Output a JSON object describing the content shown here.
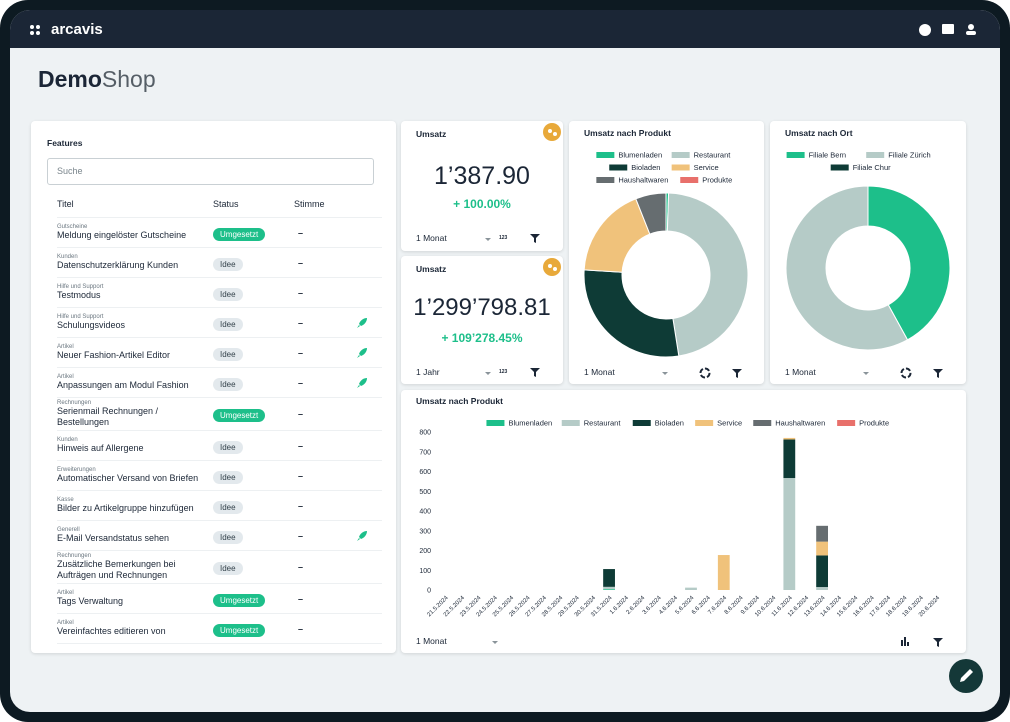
{
  "header": {
    "brand": "arcavis"
  },
  "shop": {
    "name_bold": "Demo",
    "name_light": "Shop"
  },
  "features": {
    "title": "Features",
    "search_placeholder": "Suche",
    "columns": [
      "Titel",
      "Status",
      "Stimme"
    ],
    "rows": [
      {
        "category": "Gutscheine",
        "title": "Meldung eingelöster Gutscheine",
        "status": "Umgesetzt",
        "status_color": "#1dbf8a",
        "status_text_color": "#ffffff",
        "vote": "–",
        "rocket": false
      },
      {
        "category": "Kunden",
        "title": "Datenschutzerklärung Kunden",
        "status": "Idee",
        "status_color": "#e3e9ed",
        "status_text_color": "#33414a",
        "vote": "–",
        "rocket": false
      },
      {
        "category": "Hilfe und Support",
        "title": "Testmodus",
        "status": "Idee",
        "status_color": "#e3e9ed",
        "status_text_color": "#33414a",
        "vote": "–",
        "rocket": false
      },
      {
        "category": "Hilfe und Support",
        "title": "Schulungsvideos",
        "status": "Idee",
        "status_color": "#e3e9ed",
        "status_text_color": "#33414a",
        "vote": "–",
        "rocket": true
      },
      {
        "category": "Artikel",
        "title": "Neuer Fashion-Artikel Editor",
        "status": "Idee",
        "status_color": "#e3e9ed",
        "status_text_color": "#33414a",
        "vote": "–",
        "rocket": true
      },
      {
        "category": "Artikel",
        "title": "Anpassungen am Modul Fashion",
        "status": "Idee",
        "status_color": "#e3e9ed",
        "status_text_color": "#33414a",
        "vote": "–",
        "rocket": true
      },
      {
        "category": "Rechnungen",
        "title": "Serienmail Rechnungen / Bestellungen",
        "status": "Umgesetzt",
        "status_color": "#1dbf8a",
        "status_text_color": "#ffffff",
        "vote": "–",
        "rocket": false
      },
      {
        "category": "Kunden",
        "title": "Hinweis auf Allergene",
        "status": "Idee",
        "status_color": "#e3e9ed",
        "status_text_color": "#33414a",
        "vote": "–",
        "rocket": false
      },
      {
        "category": "Erweiterungen",
        "title": "Automatischer Versand von Briefen",
        "status": "Idee",
        "status_color": "#e3e9ed",
        "status_text_color": "#33414a",
        "vote": "–",
        "rocket": false
      },
      {
        "category": "Kasse",
        "title": "Bilder zu Artikelgruppe hinzufügen",
        "status": "Idee",
        "status_color": "#e3e9ed",
        "status_text_color": "#33414a",
        "vote": "–",
        "rocket": false
      },
      {
        "category": "Generell",
        "title": "E-Mail Versandstatus sehen",
        "status": "Idee",
        "status_color": "#e3e9ed",
        "status_text_color": "#33414a",
        "vote": "–",
        "rocket": true
      },
      {
        "category": "Rechnungen",
        "title": "Zusätzliche Bemerkungen bei Aufträgen und Rechnungen",
        "status": "Idee",
        "status_color": "#e3e9ed",
        "status_text_color": "#33414a",
        "vote": "–",
        "rocket": false
      },
      {
        "category": "Artikel",
        "title": "Tags Verwaltung",
        "status": "Umgesetzt",
        "status_color": "#1dbf8a",
        "status_text_color": "#ffffff",
        "vote": "–",
        "rocket": false
      },
      {
        "category": "Artikel",
        "title": "Vereinfachtes editieren von",
        "status": "Umgesetzt",
        "status_color": "#1dbf8a",
        "status_text_color": "#ffffff",
        "vote": "–",
        "rocket": false
      }
    ]
  },
  "kpis": [
    {
      "title": "Umsatz",
      "value": "1’387.90",
      "change": "+ 100.00%",
      "period": "1 Monat",
      "format": "123"
    },
    {
      "title": "Umsatz",
      "value": "1’299’798.81",
      "change": "+ 109’278.45%",
      "period": "1 Jahr",
      "format": "123"
    }
  ],
  "chart_data": [
    {
      "type": "pie",
      "title": "Umsatz nach Produkt",
      "period": "1 Monat",
      "categories": [
        "Blumenladen",
        "Restaurant",
        "Bioladen",
        "Service",
        "Haushaltwaren",
        "Produkte"
      ],
      "values": [
        0.5,
        47,
        28.5,
        18,
        6,
        0
      ],
      "colors": [
        "#1dbf8a",
        "#b5cbc7",
        "#0e3b36",
        "#f0c27b",
        "#666d70",
        "#e8706b"
      ]
    },
    {
      "type": "pie",
      "title": "Umsatz nach Ort",
      "period": "1 Monat",
      "categories": [
        "Filiale Bern",
        "Filiale Zürich",
        "Filiale Chur"
      ],
      "values": [
        42,
        58,
        0
      ],
      "colors": [
        "#1dbf8a",
        "#b5cbc7",
        "#0e3b36"
      ]
    },
    {
      "type": "bar",
      "stacked": true,
      "title": "Umsatz nach Produkt",
      "period": "1 Monat",
      "grid": false,
      "categories": [
        "21.5.2024",
        "22.5.2024",
        "23.5.2024",
        "24.5.2024",
        "25.5.2024",
        "26.5.2024",
        "27.5.2024",
        "28.5.2024",
        "29.5.2024",
        "30.5.2024",
        "31.5.2024",
        "1.6.2024",
        "2.6.2024",
        "3.6.2024",
        "4.6.2024",
        "5.6.2024",
        "6.6.2024",
        "7.6.2024",
        "8.6.2024",
        "9.6.2024",
        "10.6.2024",
        "11.6.2024",
        "12.6.2024",
        "13.6.2024",
        "14.6.2024",
        "15.6.2024",
        "16.6.2024",
        "17.6.2024",
        "18.6.2024",
        "19.6.2024",
        "20.6.2024"
      ],
      "series": [
        {
          "name": "Blumenladen",
          "color": "#1dbf8a",
          "values": [
            0,
            0,
            0,
            0,
            0,
            0,
            0,
            0,
            0,
            0,
            4,
            0,
            0,
            0,
            0,
            0,
            0,
            0,
            0,
            0,
            0,
            0,
            0,
            0,
            0,
            0,
            0,
            0,
            0,
            0,
            0
          ]
        },
        {
          "name": "Restaurant",
          "color": "#b5cbc7",
          "values": [
            0,
            0,
            0,
            0,
            0,
            0,
            0,
            0,
            0,
            0,
            12,
            0,
            0,
            0,
            0,
            12,
            0,
            0,
            0,
            0,
            0,
            567,
            0,
            15,
            0,
            0,
            0,
            0,
            0,
            0,
            0
          ]
        },
        {
          "name": "Bioladen",
          "color": "#0e3b36",
          "values": [
            0,
            0,
            0,
            0,
            0,
            0,
            0,
            0,
            0,
            0,
            90,
            0,
            0,
            0,
            0,
            0,
            0,
            0,
            0,
            0,
            0,
            195,
            0,
            160,
            0,
            0,
            0,
            0,
            0,
            0,
            0
          ]
        },
        {
          "name": "Service",
          "color": "#f0c27b",
          "values": [
            0,
            0,
            0,
            0,
            0,
            0,
            0,
            0,
            0,
            0,
            0,
            0,
            0,
            0,
            0,
            0,
            0,
            177,
            0,
            0,
            0,
            8,
            0,
            70,
            0,
            0,
            0,
            0,
            0,
            0,
            0
          ]
        },
        {
          "name": "Haushaltwaren",
          "color": "#666d70",
          "values": [
            0,
            0,
            0,
            0,
            0,
            0,
            0,
            0,
            0,
            0,
            0,
            0,
            0,
            0,
            0,
            0,
            0,
            0,
            0,
            0,
            0,
            0,
            0,
            80,
            0,
            0,
            0,
            0,
            0,
            0,
            0
          ]
        },
        {
          "name": "Produkte",
          "color": "#e8706b",
          "values": [
            0,
            0,
            0,
            0,
            0,
            0,
            0,
            0,
            0,
            0,
            0,
            0,
            0,
            0,
            0,
            0,
            0,
            0,
            0,
            0,
            0,
            0,
            0,
            0,
            0,
            0,
            0,
            0,
            0,
            0,
            0
          ]
        }
      ],
      "ylim": [
        0,
        800
      ],
      "yticks": [
        0,
        100,
        200,
        300,
        400,
        500,
        600,
        700,
        800
      ]
    }
  ]
}
